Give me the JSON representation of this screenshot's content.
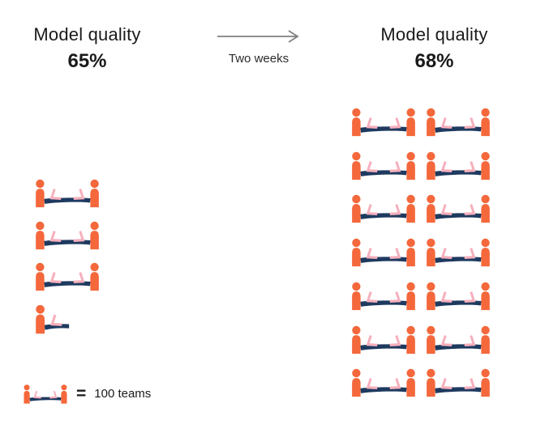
{
  "colors": {
    "person": "#F4683C",
    "table": "#1E3A5F",
    "laptop": "#F6AFBC",
    "arrow": "#808080",
    "text": "#1A1A1A",
    "background": "#FFFFFF"
  },
  "left_panel": {
    "title": "Model quality",
    "value": "65%"
  },
  "transition": {
    "label": "Two weeks"
  },
  "right_panel": {
    "title": "Model quality",
    "value": "68%"
  },
  "legend": {
    "equals": "=",
    "label": "100 teams",
    "unit_per_icon": 100
  },
  "icons": {
    "team": "team-at-table-icon",
    "arrow": "right-arrow-icon"
  },
  "chart_data": {
    "type": "pictogram",
    "unit_label": "100 teams",
    "unit_value": 100,
    "series": [
      {
        "name": "before",
        "title": "Model quality",
        "quality_percent": 65,
        "quality_label": "65%",
        "icons_full": 3,
        "icons_half": 1,
        "teams_estimate": 350
      },
      {
        "name": "after",
        "title": "Model quality",
        "quality_percent": 68,
        "quality_label": "68%",
        "icons_full": 14,
        "icons_half": 0,
        "teams_estimate": 1400
      }
    ],
    "annotations": [
      "Two weeks"
    ],
    "layout": {
      "before_columns": 1,
      "after_columns": 2,
      "after_rows": 7,
      "legend_position": "bottom-left"
    }
  }
}
